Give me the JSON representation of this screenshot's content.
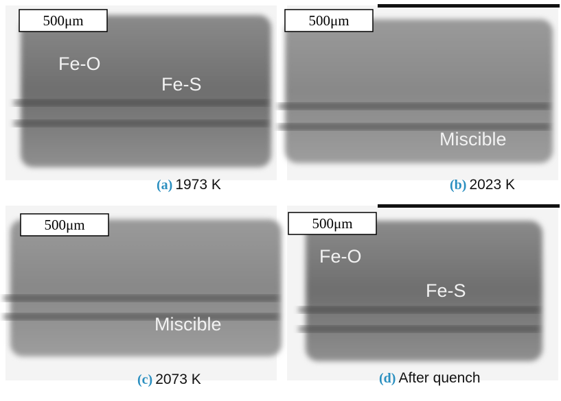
{
  "panels": [
    {
      "scale_bar": "500μm",
      "labels": [
        "Fe-O",
        "Fe-S"
      ],
      "letter": "(a)",
      "caption": "1973 K"
    },
    {
      "scale_bar": "500μm",
      "labels": [
        "Miscible"
      ],
      "letter": "(b)",
      "caption": "2023 K"
    },
    {
      "scale_bar": "500μm",
      "labels": [
        "Miscible"
      ],
      "letter": "(c)",
      "caption": "2073 K"
    },
    {
      "scale_bar": "500μm",
      "labels": [
        "Fe-O",
        "Fe-S"
      ],
      "letter": "(d)",
      "caption": "After quench"
    }
  ]
}
